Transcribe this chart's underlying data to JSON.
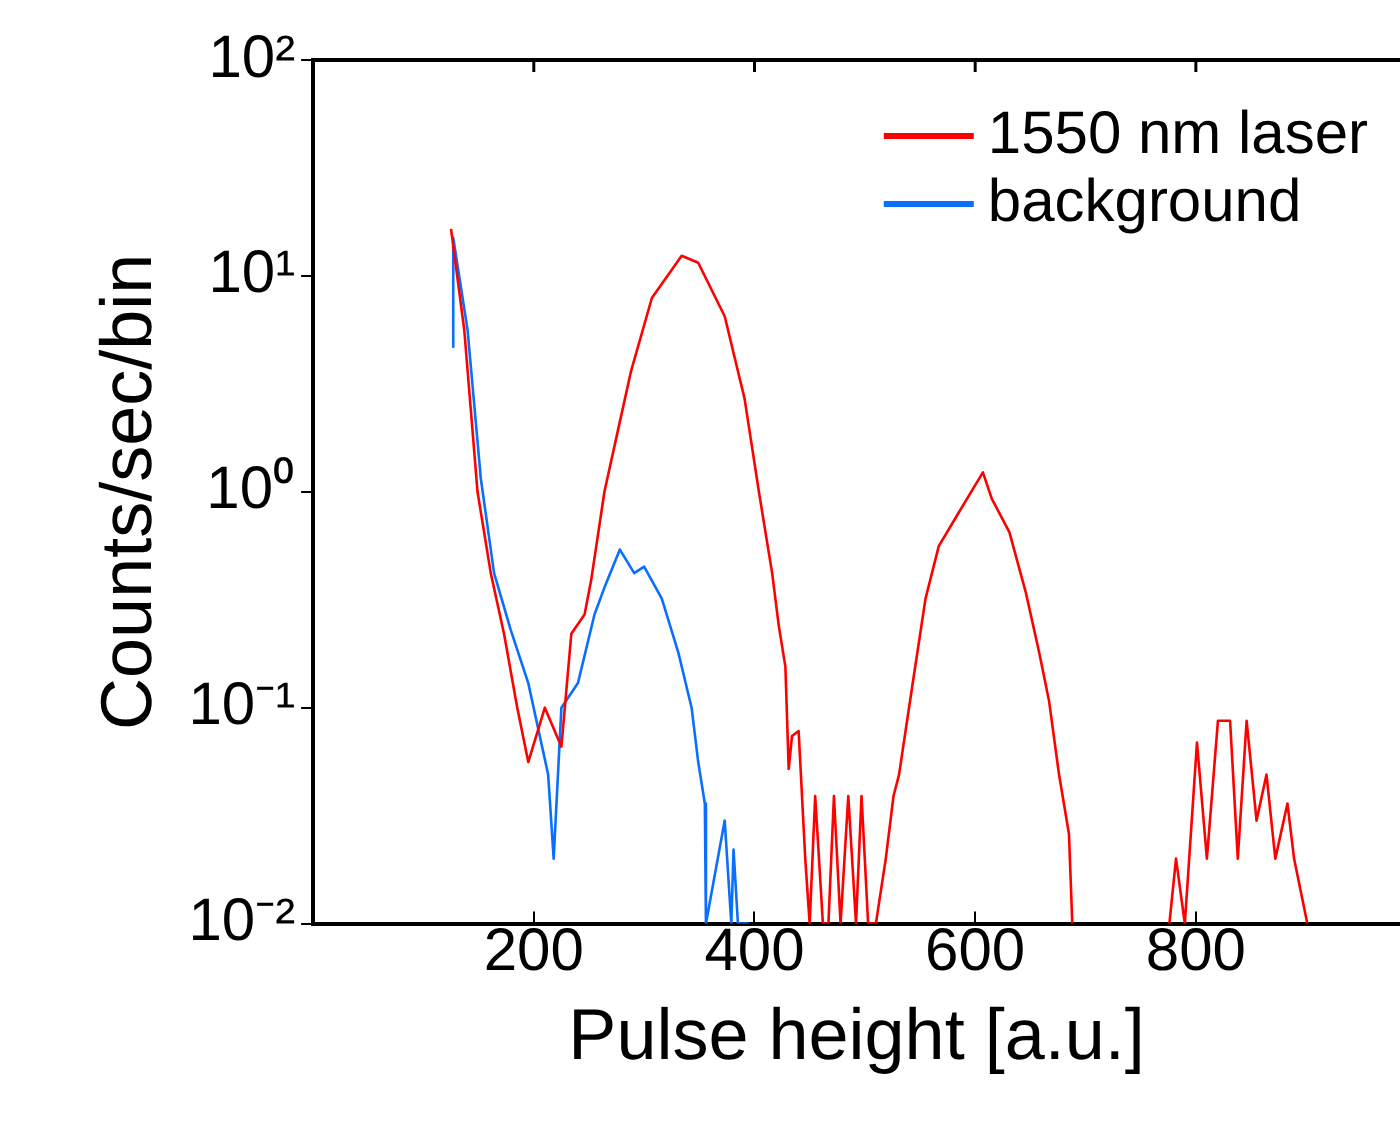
{
  "chart_data": {
    "type": "line",
    "xlabel": "Pulse height [a.u.]",
    "ylabel": "Counts/sec/bin",
    "log": "y",
    "grid": false,
    "legend": "top right",
    "xlim": [
      0,
      985
    ],
    "xticks": [
      200,
      400,
      600,
      800
    ],
    "ylim": [
      0.01,
      100
    ],
    "yticks": [
      {
        "value": 0.01,
        "label": "10⁻²"
      },
      {
        "value": 0.1,
        "label": "10⁻¹"
      },
      {
        "value": 1,
        "label": "10⁰"
      },
      {
        "value": 10,
        "label": "10¹"
      },
      {
        "value": 100,
        "label": "10²"
      }
    ],
    "series": [
      {
        "name": "1550 nm laser",
        "color": "#ff0000",
        "x": [
          125,
          137,
          149,
          161,
          173,
          185,
          195,
          210,
          225,
          234,
          246,
          252,
          264,
          276,
          288,
          307,
          334,
          349,
          373,
          391,
          404,
          416,
          422,
          428,
          431,
          434,
          440,
          446,
          450,
          455,
          462,
          467,
          472,
          478,
          485,
          492,
          497,
          503,
          510,
          519,
          526,
          531,
          543,
          555,
          567,
          585,
          607,
          615,
          631,
          646,
          658,
          667,
          676,
          685,
          688,
          700,
          720,
          748,
          760,
          776,
          782,
          790,
          801,
          810,
          820,
          831,
          838,
          846,
          855,
          864,
          872,
          883,
          889,
          901
        ],
        "values": [
          16.5,
          5.6,
          1.0,
          0.42,
          0.22,
          0.1,
          0.056,
          0.1,
          0.066,
          0.22,
          0.27,
          0.39,
          1.0,
          1.9,
          3.6,
          7.9,
          12.4,
          11.5,
          6.5,
          2.7,
          1.0,
          0.42,
          0.24,
          0.155,
          0.052,
          0.074,
          0.078,
          0.02,
          0.01,
          0.039,
          0.01,
          0.01,
          0.039,
          0.01,
          0.039,
          0.01,
          0.039,
          0.01,
          0.01,
          0.02,
          0.039,
          0.049,
          0.126,
          0.32,
          0.56,
          0.8,
          1.23,
          0.93,
          0.65,
          0.34,
          0.18,
          0.107,
          0.049,
          0.026,
          0.01,
          null,
          null,
          null,
          null,
          0.01,
          0.02,
          0.01,
          0.069,
          0.02,
          0.087,
          0.087,
          0.02,
          0.087,
          0.03,
          0.049,
          0.02,
          0.036,
          0.02,
          0.01
        ]
      },
      {
        "name": "background",
        "color": "#0a6eff",
        "x": [
          126,
          127,
          140,
          152,
          164,
          179,
          195,
          213,
          218,
          225,
          240,
          255,
          264,
          278,
          291,
          300,
          316,
          331,
          343,
          349,
          355,
          356,
          373,
          379,
          381,
          385,
          395
        ],
        "values": [
          4.7,
          15,
          5.6,
          1.15,
          0.42,
          0.23,
          0.13,
          0.049,
          0.02,
          0.1,
          0.13,
          0.27,
          0.36,
          0.54,
          0.42,
          0.45,
          0.32,
          0.18,
          0.1,
          0.056,
          0.036,
          0.01,
          0.03,
          0.01,
          0.022,
          0.01,
          0.01
        ]
      }
    ]
  }
}
